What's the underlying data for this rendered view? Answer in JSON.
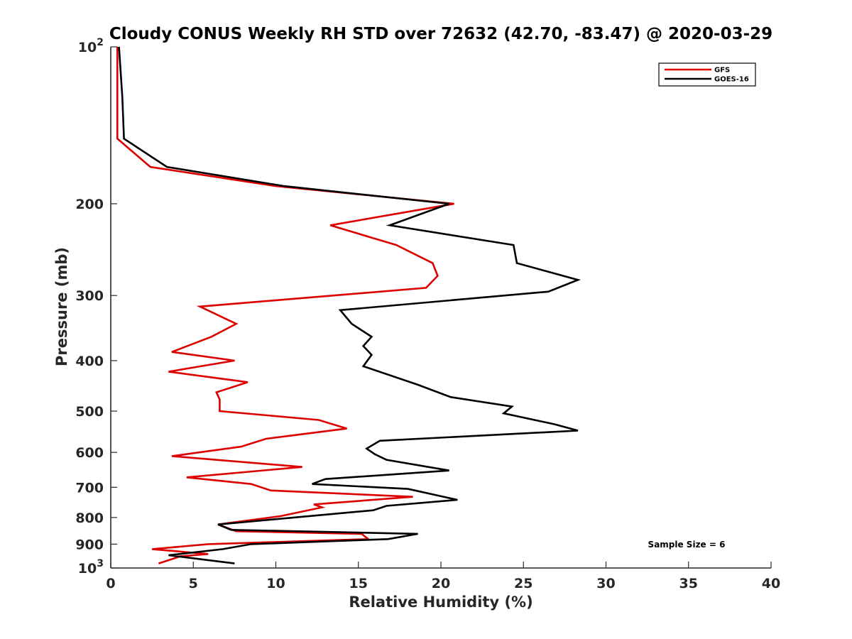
{
  "chart_data": {
    "type": "line",
    "title": "Cloudy CONUS Weekly RH STD over 72632 (42.70, -83.47) @ 2020-03-29",
    "xlabel": "Relative Humidity (%)",
    "ylabel": "Pressure (mb)",
    "xlim": [
      0,
      40
    ],
    "ylim": [
      100,
      1000
    ],
    "y_scale": "log",
    "y_reversed": true,
    "x_ticks": [
      "0",
      "5",
      "10",
      "15",
      "20",
      "25",
      "30",
      "35",
      "40"
    ],
    "y_ticks": [
      {
        "value": 100,
        "base": "10",
        "exp": "2"
      },
      {
        "value": 200,
        "label": "200"
      },
      {
        "value": 300,
        "label": "300"
      },
      {
        "value": 400,
        "label": "400"
      },
      {
        "value": 500,
        "label": "500"
      },
      {
        "value": 600,
        "label": "600"
      },
      {
        "value": 700,
        "label": "700"
      },
      {
        "value": 800,
        "label": "800"
      },
      {
        "value": 900,
        "label": "900"
      },
      {
        "value": 1000,
        "base": "10",
        "exp": "3"
      }
    ],
    "legend_position": "top-right",
    "series": [
      {
        "name": "GFS",
        "color": "#dd0000",
        "points": [
          [
            0.4,
            100
          ],
          [
            0.4,
            125
          ],
          [
            0.4,
            150
          ],
          [
            2.4,
            170
          ],
          [
            10,
            185
          ],
          [
            20.8,
            200
          ],
          [
            13.3,
            220
          ],
          [
            17.3,
            240
          ],
          [
            19.5,
            260
          ],
          [
            19.8,
            275
          ],
          [
            19.1,
            290
          ],
          [
            5.4,
            315
          ],
          [
            7.6,
            340
          ],
          [
            6.1,
            360
          ],
          [
            3.7,
            385
          ],
          [
            7.5,
            400
          ],
          [
            3.5,
            420
          ],
          [
            8.3,
            440
          ],
          [
            6.4,
            460
          ],
          [
            6.6,
            475
          ],
          [
            6.6,
            500
          ],
          [
            12.6,
            520
          ],
          [
            14.3,
            540
          ],
          [
            9.4,
            565
          ],
          [
            7.9,
            585
          ],
          [
            3.7,
            610
          ],
          [
            11.6,
            640
          ],
          [
            4.6,
            670
          ],
          [
            8.5,
            690
          ],
          [
            9.7,
            710
          ],
          [
            18.3,
            730
          ],
          [
            12.3,
            755
          ],
          [
            12.8,
            765
          ],
          [
            10.3,
            795
          ],
          [
            6.5,
            825
          ],
          [
            7.6,
            850
          ],
          [
            15.2,
            860
          ],
          [
            15.6,
            880
          ],
          [
            5.9,
            900
          ],
          [
            2.5,
            920
          ],
          [
            5.9,
            940
          ],
          [
            4.2,
            950
          ],
          [
            2.9,
            980
          ]
        ]
      },
      {
        "name": "GOES-16",
        "color": "#000000",
        "points": [
          [
            0.5,
            100
          ],
          [
            0.7,
            125
          ],
          [
            0.8,
            150
          ],
          [
            3.4,
            170
          ],
          [
            10.5,
            185
          ],
          [
            20.5,
            200
          ],
          [
            16.9,
            220
          ],
          [
            24.4,
            240
          ],
          [
            24.6,
            260
          ],
          [
            28.3,
            280
          ],
          [
            26.5,
            295
          ],
          [
            13.9,
            320
          ],
          [
            14.6,
            340
          ],
          [
            15.8,
            360
          ],
          [
            15.3,
            375
          ],
          [
            15.8,
            390
          ],
          [
            15.3,
            410
          ],
          [
            18.6,
            445
          ],
          [
            20.6,
            470
          ],
          [
            24.3,
            490
          ],
          [
            23.8,
            505
          ],
          [
            26.9,
            530
          ],
          [
            28.3,
            545
          ],
          [
            16.3,
            570
          ],
          [
            15.5,
            590
          ],
          [
            16.0,
            605
          ],
          [
            16.7,
            620
          ],
          [
            20.5,
            650
          ],
          [
            13.0,
            675
          ],
          [
            12.2,
            690
          ],
          [
            18.0,
            705
          ],
          [
            21.0,
            740
          ],
          [
            16.7,
            760
          ],
          [
            15.9,
            775
          ],
          [
            6.5,
            825
          ],
          [
            7.3,
            845
          ],
          [
            18.6,
            860
          ],
          [
            16.8,
            880
          ],
          [
            8.5,
            900
          ],
          [
            6.8,
            920
          ],
          [
            3.5,
            945
          ],
          [
            7.5,
            980
          ]
        ]
      }
    ],
    "annotations": [
      "Sample Size = 6"
    ]
  }
}
